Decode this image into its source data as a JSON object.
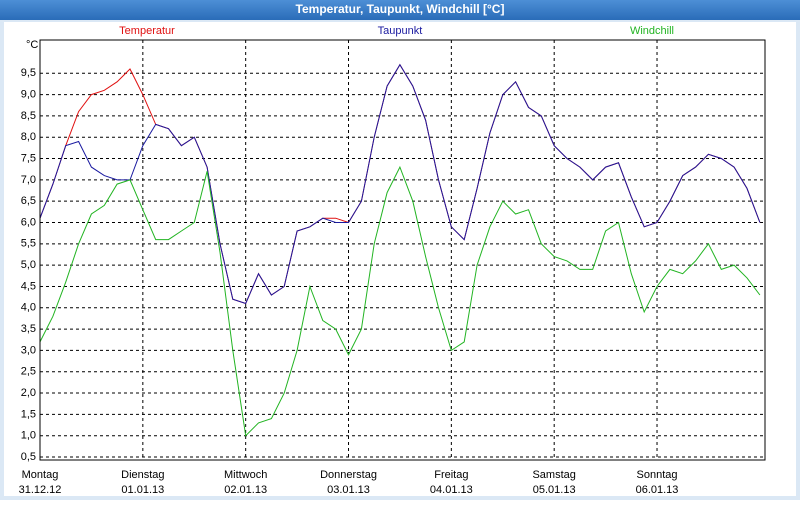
{
  "chart_data": {
    "type": "line",
    "title": "Temperatur, Taupunkt, Windchill [°C]",
    "y_unit": "°C",
    "x": [
      0,
      0.125,
      0.25,
      0.375,
      0.5,
      0.625,
      0.75,
      0.875,
      1,
      1.125,
      1.25,
      1.375,
      1.5,
      1.625,
      1.75,
      1.875,
      2,
      2.125,
      2.25,
      2.375,
      2.5,
      2.625,
      2.75,
      2.875,
      3,
      3.125,
      3.25,
      3.375,
      3.5,
      3.625,
      3.75,
      3.875,
      4,
      4.125,
      4.25,
      4.375,
      4.5,
      4.625,
      4.75,
      4.875,
      5,
      5.125,
      5.25,
      5.375,
      5.5,
      5.625,
      5.75,
      5.875,
      6,
      6.125,
      6.25,
      6.375,
      6.5,
      6.625,
      6.75,
      6.875,
      7
    ],
    "xlim": [
      0,
      7.05
    ],
    "xticks": [
      {
        "value": 0,
        "label": "Montag"
      },
      {
        "value": 1,
        "label": "Dienstag"
      },
      {
        "value": 2,
        "label": "Mittwoch"
      },
      {
        "value": 3,
        "label": "Donnerstag"
      },
      {
        "value": 4,
        "label": "Freitag"
      },
      {
        "value": 5,
        "label": "Samstag"
      },
      {
        "value": 6,
        "label": "Sonntag"
      }
    ],
    "xtick_dates": [
      "31.12.12",
      "01.01.13",
      "02.01.13",
      "03.01.13",
      "04.01.13",
      "05.01.13",
      "06.01.13"
    ],
    "ylim": [
      0.43,
      10.28
    ],
    "yticks": [
      {
        "value": 0.5,
        "label": "0,5"
      },
      {
        "value": 1,
        "label": "1,0"
      },
      {
        "value": 1.5,
        "label": "1,5"
      },
      {
        "value": 2,
        "label": "2,0"
      },
      {
        "value": 2.5,
        "label": "2,5"
      },
      {
        "value": 3,
        "label": "3,0"
      },
      {
        "value": 3.5,
        "label": "3,5"
      },
      {
        "value": 4,
        "label": "4,0"
      },
      {
        "value": 4.5,
        "label": "4,5"
      },
      {
        "value": 5,
        "label": "5,0"
      },
      {
        "value": 5.5,
        "label": "5,5"
      },
      {
        "value": 6,
        "label": "6,0"
      },
      {
        "value": 6.5,
        "label": "6,5"
      },
      {
        "value": 7,
        "label": "7,0"
      },
      {
        "value": 7.5,
        "label": "7,5"
      },
      {
        "value": 8,
        "label": "8,0"
      },
      {
        "value": 8.5,
        "label": "8,5"
      },
      {
        "value": 9,
        "label": "9,0"
      },
      {
        "value": 9.5,
        "label": "9,5"
      }
    ],
    "grid": true,
    "series": [
      {
        "name": "Temperatur",
        "color": "#e01010",
        "values": [
          6.1,
          6.9,
          7.8,
          8.6,
          9.0,
          9.1,
          9.3,
          9.6,
          9.0,
          8.3,
          8.2,
          7.8,
          8.0,
          7.3,
          5.5,
          4.2,
          4.1,
          4.8,
          4.3,
          4.5,
          5.8,
          5.9,
          6.1,
          6.1,
          6.0,
          6.5,
          8.0,
          9.2,
          9.7,
          9.2,
          8.4,
          7.0,
          5.9,
          5.6,
          6.8,
          8.1,
          9.0,
          9.3,
          8.7,
          8.5,
          7.8,
          7.5,
          7.3,
          7.0,
          7.3,
          7.4,
          6.6,
          5.9,
          6.0,
          6.5,
          7.1,
          7.3,
          7.6,
          7.5,
          7.3,
          6.8,
          6.0
        ]
      },
      {
        "name": "Taupunkt",
        "color": "#1a1aa0",
        "values": [
          6.1,
          6.9,
          7.8,
          7.9,
          7.3,
          7.1,
          7.0,
          7.0,
          7.8,
          8.3,
          8.2,
          7.8,
          8.0,
          7.3,
          5.5,
          4.2,
          4.1,
          4.8,
          4.3,
          4.5,
          5.8,
          5.9,
          6.1,
          6.0,
          6.0,
          6.5,
          8.0,
          9.2,
          9.7,
          9.2,
          8.4,
          7.0,
          5.9,
          5.6,
          6.8,
          8.1,
          9.0,
          9.3,
          8.7,
          8.5,
          7.8,
          7.5,
          7.3,
          7.0,
          7.3,
          7.4,
          6.6,
          5.9,
          6.0,
          6.5,
          7.1,
          7.3,
          7.6,
          7.5,
          7.3,
          6.8,
          6.0
        ]
      },
      {
        "name": "Windchill",
        "color": "#22b422",
        "values": [
          3.2,
          3.8,
          4.6,
          5.5,
          6.2,
          6.4,
          6.9,
          7.0,
          6.3,
          5.6,
          5.6,
          5.8,
          6.0,
          7.2,
          5.3,
          3.0,
          1.0,
          1.3,
          1.4,
          2.0,
          3.0,
          4.5,
          3.7,
          3.5,
          2.9,
          3.5,
          5.5,
          6.7,
          7.3,
          6.5,
          5.2,
          4.0,
          3.0,
          3.2,
          5.0,
          5.9,
          6.5,
          6.2,
          6.3,
          5.5,
          5.2,
          5.1,
          4.9,
          4.9,
          5.8,
          6.0,
          4.8,
          3.9,
          4.5,
          4.9,
          4.8,
          5.1,
          5.5,
          4.9,
          5.0,
          4.7,
          4.3
        ]
      }
    ]
  }
}
